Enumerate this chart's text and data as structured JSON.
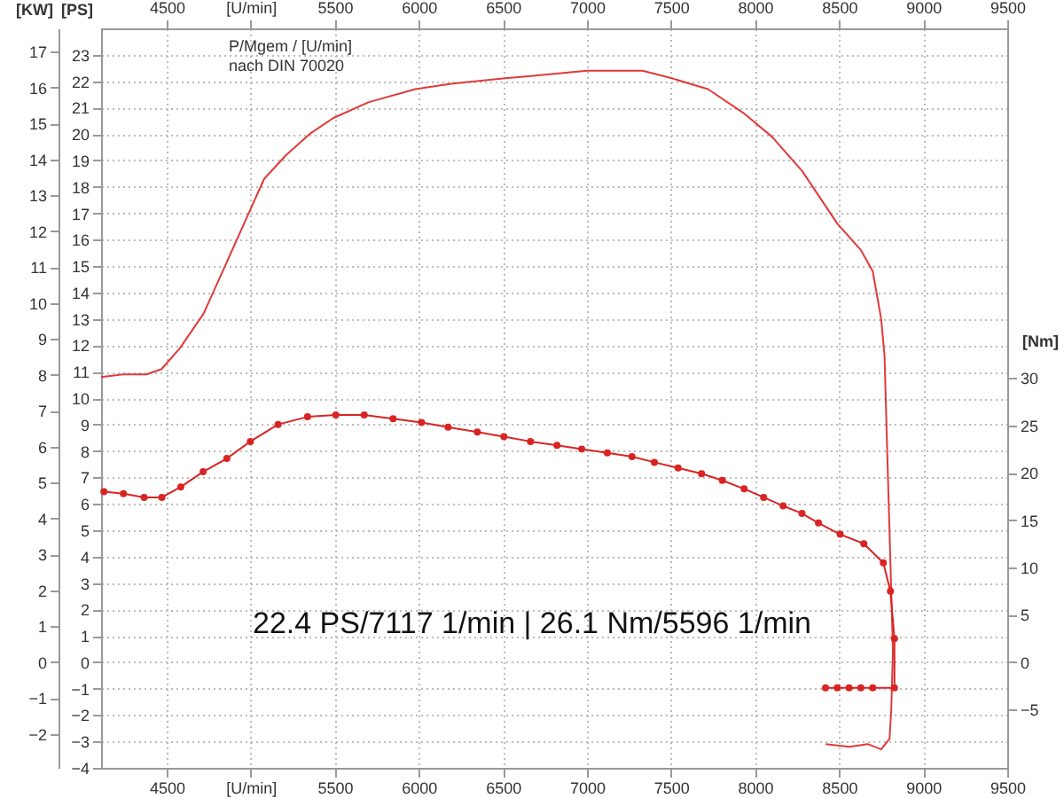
{
  "chart_data": {
    "type": "line",
    "annotations": [
      "P/Mgem / [U/min]",
      "nach DIN 70020",
      "22.4 PS/7117 1/min | 26.1 Nm/5596 1/min"
    ],
    "ylabel": "[PS]",
    "y2label": "[Nm]",
    "y3label": "[KW]",
    "xlim": [
      4110,
      9500
    ],
    "xticks": [
      4500,
      {
        "value": 5000,
        "label": "[U/min]"
      },
      5500,
      6000,
      6500,
      7000,
      7500,
      8000,
      8500,
      9000,
      9500
    ],
    "x2lim": [
      4110,
      9500
    ],
    "x2ticks": [
      4500,
      {
        "value": 5000,
        "label": "[U/min]"
      },
      5500,
      6000,
      6500,
      7000,
      7500,
      8000,
      8500,
      9000,
      9500
    ],
    "ylim": [
      -4,
      24
    ],
    "yticks": [
      -4,
      -3,
      -2,
      -1,
      0,
      1,
      2,
      3,
      4,
      5,
      6,
      7,
      8,
      9,
      10,
      11,
      12,
      13,
      14,
      15,
      16,
      17,
      18,
      19,
      20,
      21,
      22,
      23
    ],
    "y2lim": [
      -11.15,
      66.9
    ],
    "y2ticks": [
      -5,
      0,
      5,
      10,
      15,
      20,
      25,
      30
    ],
    "y3lim": [
      -2.94,
      17.65
    ],
    "y3ticks": [
      -2,
      -1,
      0,
      1,
      2,
      3,
      4,
      5,
      6,
      7,
      8,
      9,
      10,
      11,
      12,
      13,
      14,
      15,
      16,
      17
    ],
    "grid": true,
    "series": [
      {
        "color": "#e03a3a",
        "axis": "y",
        "marker": "none",
        "x": [
          4110,
          4240,
          4380,
          4470,
          4580,
          4720,
          4840,
          4960,
          5080,
          5210,
          5350,
          5490,
          5700,
          5980,
          6190,
          6500,
          6680,
          7000,
          7330,
          7510,
          7720,
          7930,
          8100,
          8280,
          8490,
          8630,
          8700,
          8750,
          8770,
          8790,
          8810,
          8820,
          8810,
          8800,
          8750,
          8670,
          8560,
          8420
        ],
        "values": [
          10.8,
          10.9,
          10.9,
          11.1,
          11.9,
          13.2,
          14.9,
          16.6,
          18.3,
          19.2,
          20.0,
          20.6,
          21.2,
          21.7,
          21.9,
          22.1,
          22.2,
          22.4,
          22.4,
          22.1,
          21.7,
          20.8,
          19.9,
          18.6,
          16.6,
          15.6,
          14.8,
          13.0,
          11.6,
          7.1,
          2.7,
          0.4,
          -1.8,
          -2.9,
          -3.3,
          -3.1,
          -3.2,
          -3.1
        ]
      },
      {
        "color": "#d92424",
        "axis": "y2",
        "marker": "circle",
        "x": [
          4127,
          4243,
          4366,
          4472,
          4584,
          4717,
          4858,
          4998,
          5163,
          5338,
          5506,
          5675,
          5847,
          6016,
          6174,
          6348,
          6506,
          6664,
          6822,
          6969,
          7121,
          7268,
          7401,
          7542,
          7682,
          7805,
          7935,
          8051,
          8167,
          8279,
          8377,
          8506,
          8647,
          8763,
          8805,
          8829,
          8829,
          8700,
          8629,
          8559,
          8489,
          8419
        ],
        "values": [
          18.0,
          17.8,
          17.4,
          17.4,
          18.5,
          20.1,
          21.5,
          23.3,
          25.1,
          25.9,
          26.1,
          26.1,
          25.7,
          25.3,
          24.8,
          24.3,
          23.8,
          23.3,
          22.9,
          22.5,
          22.1,
          21.7,
          21.1,
          20.5,
          19.9,
          19.2,
          18.3,
          17.4,
          16.5,
          15.7,
          14.7,
          13.5,
          12.5,
          10.5,
          7.5,
          2.5,
          -2.7,
          -2.7,
          -2.7,
          -2.7,
          -2.7,
          -2.7
        ]
      }
    ]
  }
}
